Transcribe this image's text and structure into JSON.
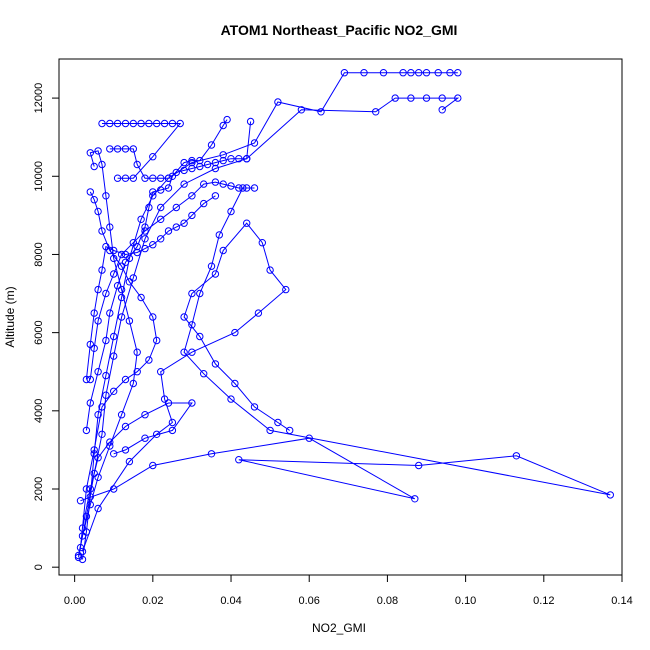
{
  "chart_data": {
    "type": "scatter",
    "title": "ATOM1 Northeast_Pacific NO2_GMI",
    "xlabel": "NO2_GMI",
    "ylabel": "Altitude (m)",
    "xlim": [
      -0.004,
      0.14
    ],
    "ylim": [
      -200,
      13000
    ],
    "x_ticks": [
      "0.00",
      "0.02",
      "0.04",
      "0.06",
      "0.08",
      "0.10",
      "0.12",
      "0.14"
    ],
    "x_tick_values": [
      0,
      0.02,
      0.04,
      0.06,
      0.08,
      0.1,
      0.12,
      0.14
    ],
    "y_ticks": [
      "0",
      "2000",
      "4000",
      "6000",
      "8000",
      "10000",
      "12000"
    ],
    "y_tick_values": [
      0,
      2000,
      4000,
      6000,
      8000,
      10000,
      12000
    ],
    "grid": false,
    "legend": "none",
    "marker": "open-circle",
    "line_style": "connected",
    "color": "#0000ff",
    "series": [
      {
        "values": [
          [
            0.002,
            200
          ],
          [
            0.003,
            900
          ],
          [
            0.004,
            1800
          ],
          [
            0.005,
            2900
          ],
          [
            0.006,
            3900
          ],
          [
            0.008,
            4900
          ],
          [
            0.01,
            5900
          ],
          [
            0.012,
            6900
          ],
          [
            0.014,
            7900
          ],
          [
            0.017,
            8900
          ],
          [
            0.02,
            9500
          ],
          [
            0.024,
            9950
          ],
          [
            0.03,
            10350
          ],
          [
            0.038,
            10550
          ],
          [
            0.046,
            10850
          ],
          [
            0.052,
            11900
          ],
          [
            0.063,
            11650
          ],
          [
            0.069,
            12650
          ],
          [
            0.074,
            12650
          ],
          [
            0.079,
            12650
          ],
          [
            0.084,
            12650
          ],
          [
            0.086,
            12650
          ],
          [
            0.088,
            12650
          ],
          [
            0.09,
            12650
          ],
          [
            0.093,
            12650
          ],
          [
            0.096,
            12650
          ],
          [
            0.098,
            12650
          ]
        ]
      },
      {
        "values": [
          [
            0.001,
            300
          ],
          [
            0.003,
            1300
          ],
          [
            0.005,
            2400
          ],
          [
            0.007,
            3400
          ],
          [
            0.008,
            4400
          ],
          [
            0.01,
            5400
          ],
          [
            0.012,
            6400
          ],
          [
            0.015,
            7400
          ],
          [
            0.018,
            8400
          ],
          [
            0.022,
            9200
          ],
          [
            0.028,
            9800
          ],
          [
            0.036,
            10200
          ],
          [
            0.044,
            10450
          ],
          [
            0.058,
            11700
          ],
          [
            0.077,
            11650
          ],
          [
            0.082,
            12000
          ],
          [
            0.086,
            12000
          ],
          [
            0.09,
            12000
          ],
          [
            0.094,
            12000
          ],
          [
            0.098,
            12000
          ],
          [
            0.094,
            11700
          ]
        ]
      },
      {
        "values": [
          [
            0.0015,
            1700
          ],
          [
            0.01,
            2000
          ],
          [
            0.02,
            2600
          ],
          [
            0.035,
            2900
          ],
          [
            0.06,
            3300
          ],
          [
            0.087,
            1750
          ],
          [
            0.042,
            2750
          ],
          [
            0.088,
            2600
          ],
          [
            0.113,
            2850
          ],
          [
            0.137,
            1850
          ],
          [
            0.05,
            3500
          ],
          [
            0.04,
            4300
          ],
          [
            0.033,
            4950
          ],
          [
            0.028,
            5500
          ],
          [
            0.03,
            6200
          ],
          [
            0.032,
            7000
          ],
          [
            0.035,
            7700
          ],
          [
            0.037,
            8500
          ],
          [
            0.04,
            9100
          ],
          [
            0.043,
            9700
          ]
        ]
      },
      {
        "values": [
          [
            0.002,
            400
          ],
          [
            0.006,
            1500
          ],
          [
            0.014,
            2700
          ],
          [
            0.021,
            3400
          ],
          [
            0.025,
            3700
          ],
          [
            0.023,
            4300
          ],
          [
            0.022,
            5000
          ],
          [
            0.03,
            5500
          ],
          [
            0.041,
            6000
          ],
          [
            0.047,
            6500
          ],
          [
            0.054,
            7100
          ],
          [
            0.05,
            7600
          ],
          [
            0.048,
            8300
          ],
          [
            0.044,
            8800
          ],
          [
            0.038,
            8100
          ],
          [
            0.036,
            7500
          ],
          [
            0.03,
            7000
          ],
          [
            0.028,
            6400
          ],
          [
            0.032,
            5900
          ],
          [
            0.036,
            5200
          ],
          [
            0.041,
            4700
          ],
          [
            0.046,
            4100
          ],
          [
            0.052,
            3700
          ],
          [
            0.055,
            3500
          ]
        ]
      },
      {
        "values": [
          [
            0.001,
            250
          ],
          [
            0.002,
            800
          ],
          [
            0.004,
            1600
          ],
          [
            0.006,
            2300
          ],
          [
            0.009,
            3100
          ],
          [
            0.012,
            3900
          ],
          [
            0.015,
            4700
          ],
          [
            0.016,
            5500
          ],
          [
            0.014,
            6300
          ],
          [
            0.012,
            7100
          ],
          [
            0.01,
            7900
          ],
          [
            0.009,
            8700
          ],
          [
            0.008,
            9500
          ],
          [
            0.007,
            10300
          ],
          [
            0.006,
            10650
          ],
          [
            0.004,
            10600
          ],
          [
            0.005,
            10250
          ]
        ]
      },
      {
        "values": [
          [
            0.007,
            11350
          ],
          [
            0.009,
            11350
          ],
          [
            0.011,
            11350
          ],
          [
            0.013,
            11350
          ],
          [
            0.015,
            11350
          ],
          [
            0.017,
            11350
          ],
          [
            0.019,
            11350
          ],
          [
            0.021,
            11350
          ],
          [
            0.023,
            11350
          ],
          [
            0.025,
            11350
          ],
          [
            0.027,
            11350
          ],
          [
            0.02,
            10500
          ],
          [
            0.015,
            9950
          ],
          [
            0.013,
            9950
          ],
          [
            0.011,
            9950
          ]
        ]
      },
      {
        "values": [
          [
            0.009,
            10700
          ],
          [
            0.011,
            10700
          ],
          [
            0.013,
            10700
          ],
          [
            0.015,
            10700
          ],
          [
            0.016,
            10300
          ],
          [
            0.018,
            9950
          ],
          [
            0.02,
            9950
          ],
          [
            0.022,
            9950
          ],
          [
            0.024,
            9950
          ],
          [
            0.026,
            10100
          ],
          [
            0.028,
            10150
          ],
          [
            0.03,
            10200
          ],
          [
            0.032,
            10250
          ],
          [
            0.034,
            10300
          ],
          [
            0.036,
            10350
          ],
          [
            0.038,
            10400
          ],
          [
            0.04,
            10450
          ],
          [
            0.042,
            10450
          ],
          [
            0.044,
            10450
          ],
          [
            0.045,
            11400
          ]
        ]
      },
      {
        "values": [
          [
            0.004,
            4800
          ],
          [
            0.005,
            5600
          ],
          [
            0.006,
            6300
          ],
          [
            0.008,
            7000
          ],
          [
            0.01,
            7500
          ],
          [
            0.012,
            8000
          ],
          [
            0.015,
            8300
          ],
          [
            0.018,
            8600
          ],
          [
            0.022,
            8900
          ],
          [
            0.026,
            9200
          ],
          [
            0.03,
            9500
          ],
          [
            0.033,
            9800
          ],
          [
            0.036,
            9850
          ],
          [
            0.038,
            9800
          ],
          [
            0.04,
            9750
          ],
          [
            0.042,
            9700
          ],
          [
            0.044,
            9700
          ],
          [
            0.046,
            9700
          ]
        ]
      },
      {
        "values": [
          [
            0.003,
            3500
          ],
          [
            0.004,
            4200
          ],
          [
            0.006,
            5000
          ],
          [
            0.008,
            5800
          ],
          [
            0.009,
            6500
          ],
          [
            0.011,
            7200
          ],
          [
            0.013,
            7800
          ],
          [
            0.016,
            8200
          ],
          [
            0.018,
            8700
          ],
          [
            0.019,
            9200
          ],
          [
            0.02,
            9600
          ],
          [
            0.022,
            9650
          ],
          [
            0.024,
            9700
          ],
          [
            0.025,
            10000
          ],
          [
            0.028,
            10350
          ],
          [
            0.03,
            10400
          ],
          [
            0.032,
            10400
          ],
          [
            0.035,
            10800
          ],
          [
            0.038,
            11300
          ],
          [
            0.039,
            11450
          ]
        ]
      },
      {
        "values": [
          [
            0.0015,
            500
          ],
          [
            0.003,
            2000
          ],
          [
            0.005,
            3000
          ],
          [
            0.007,
            4100
          ],
          [
            0.01,
            4500
          ],
          [
            0.013,
            4800
          ],
          [
            0.016,
            5000
          ],
          [
            0.019,
            5300
          ],
          [
            0.021,
            5800
          ],
          [
            0.02,
            6400
          ],
          [
            0.017,
            6900
          ],
          [
            0.014,
            7300
          ],
          [
            0.012,
            7700
          ],
          [
            0.009,
            8100
          ],
          [
            0.007,
            8600
          ],
          [
            0.006,
            9100
          ],
          [
            0.005,
            9400
          ],
          [
            0.004,
            9600
          ]
        ]
      },
      {
        "values": [
          [
            0.002,
            1000
          ],
          [
            0.004,
            2000
          ],
          [
            0.006,
            2800
          ],
          [
            0.009,
            3200
          ],
          [
            0.013,
            3600
          ],
          [
            0.018,
            3900
          ],
          [
            0.024,
            4200
          ],
          [
            0.03,
            4200
          ],
          [
            0.025,
            3500
          ],
          [
            0.018,
            3300
          ],
          [
            0.013,
            3000
          ],
          [
            0.01,
            2900
          ]
        ]
      },
      {
        "values": [
          [
            0.003,
            4800
          ],
          [
            0.004,
            5700
          ],
          [
            0.005,
            6500
          ],
          [
            0.006,
            7100
          ],
          [
            0.007,
            7600
          ],
          [
            0.008,
            8200
          ],
          [
            0.01,
            8100
          ],
          [
            0.013,
            8000
          ],
          [
            0.016,
            8050
          ],
          [
            0.018,
            8150
          ],
          [
            0.02,
            8250
          ],
          [
            0.022,
            8400
          ],
          [
            0.024,
            8600
          ],
          [
            0.026,
            8700
          ],
          [
            0.028,
            8800
          ],
          [
            0.03,
            9000
          ],
          [
            0.033,
            9300
          ],
          [
            0.036,
            9500
          ]
        ]
      }
    ]
  }
}
